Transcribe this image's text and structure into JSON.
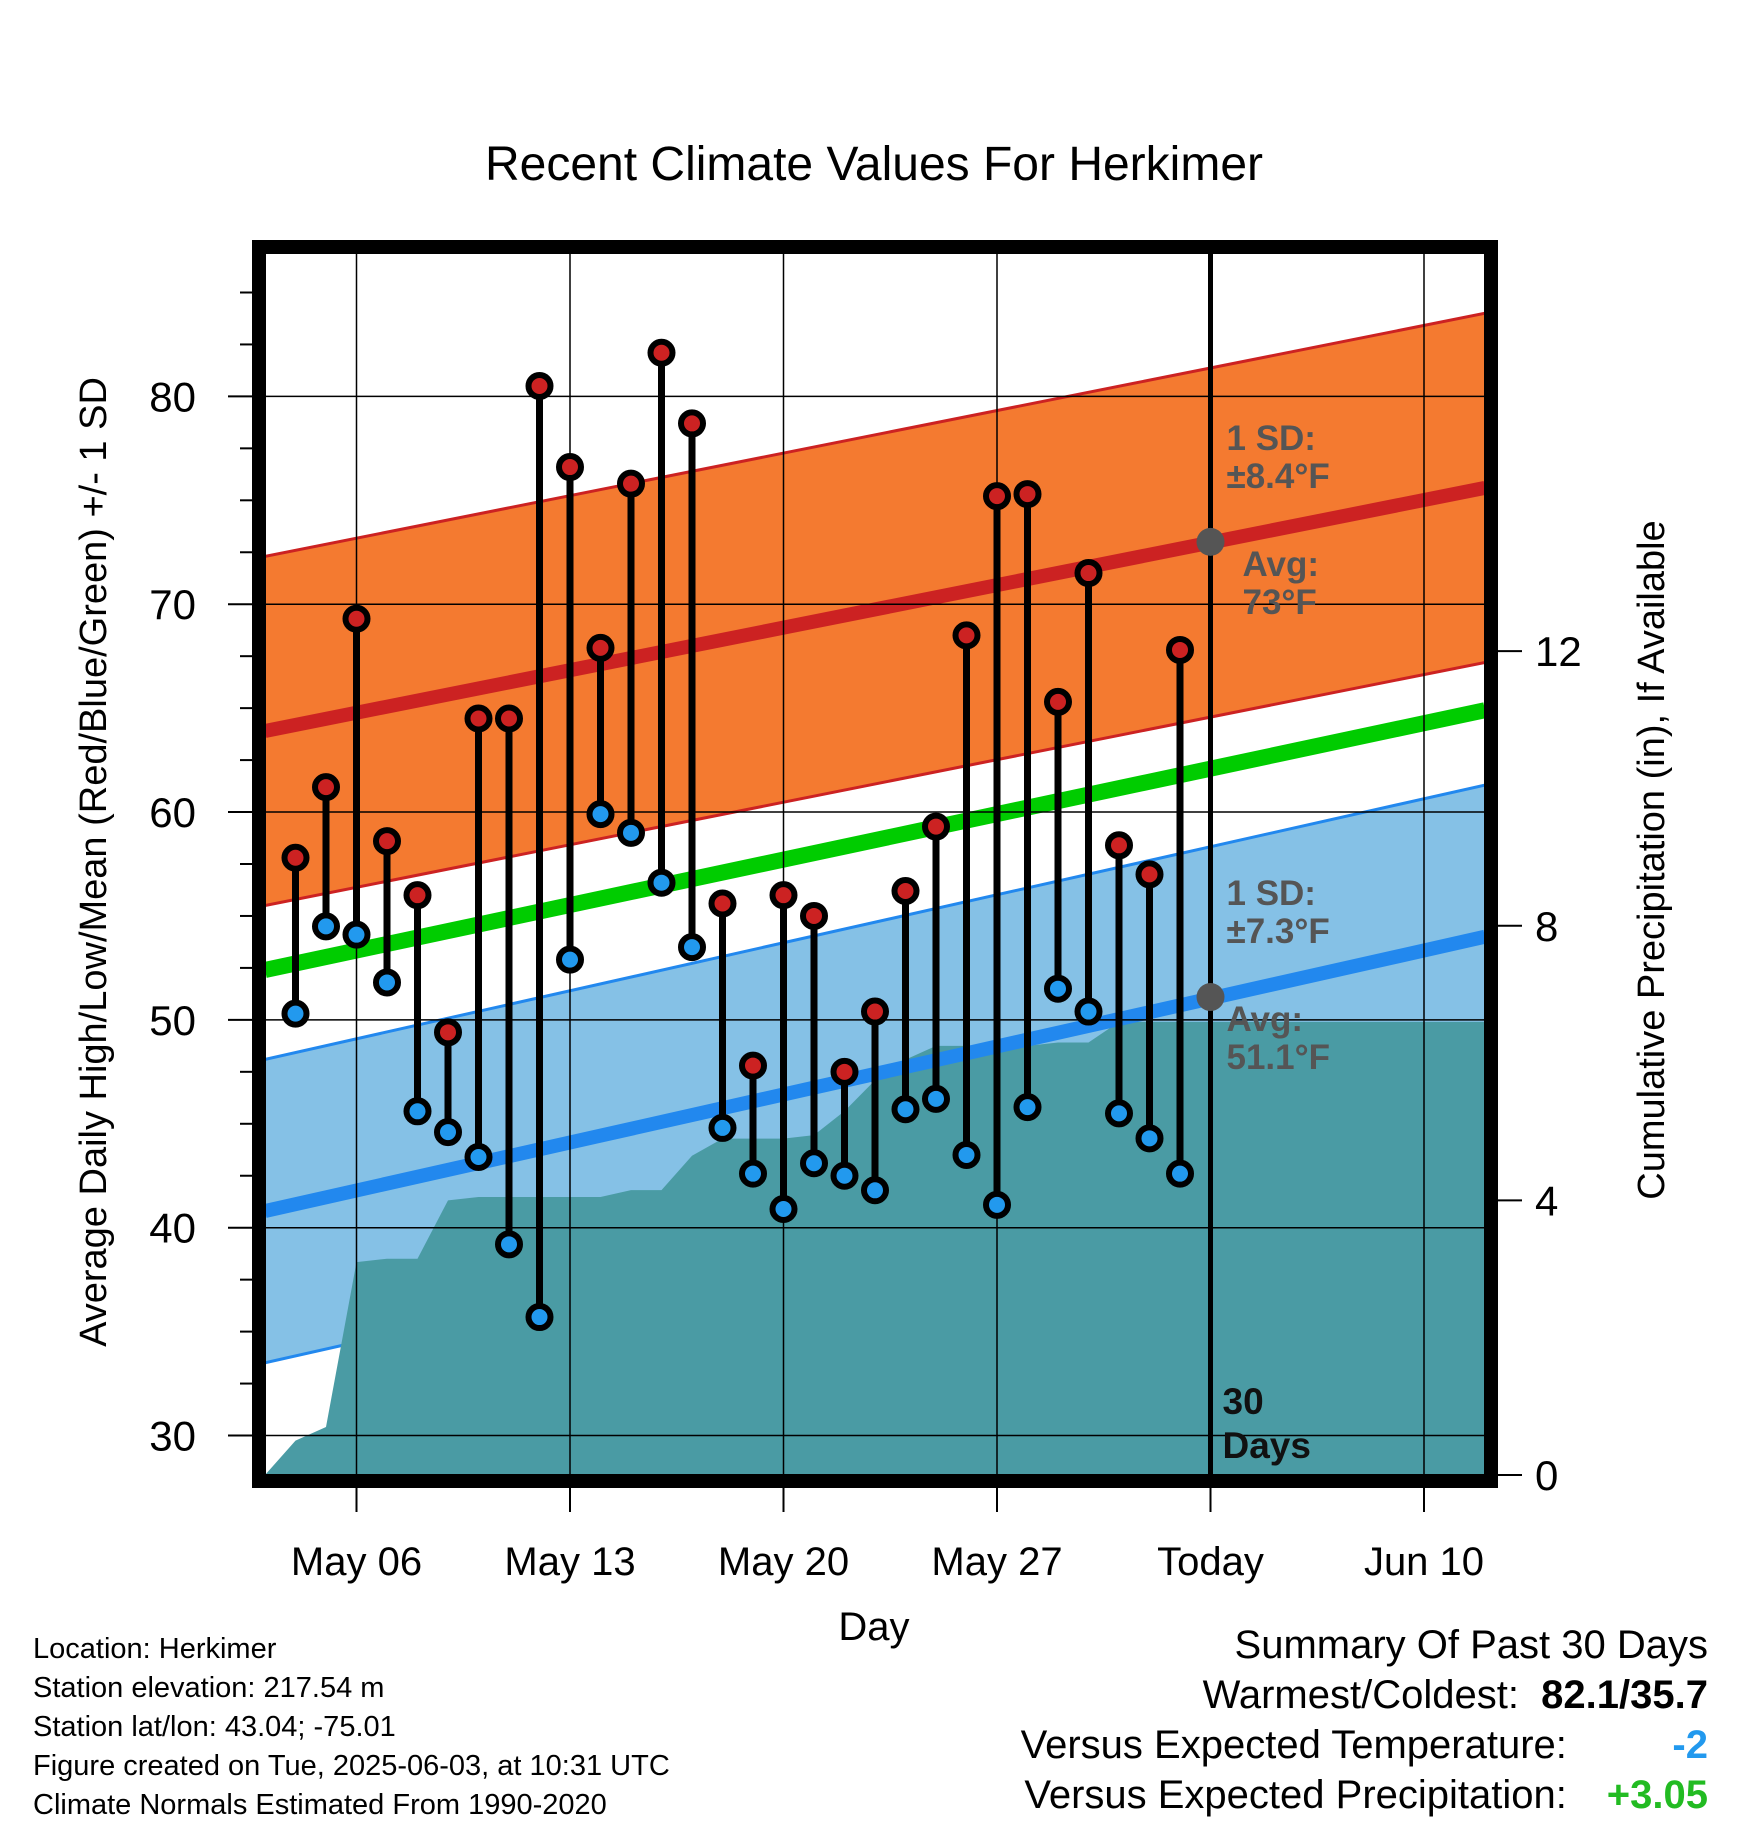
{
  "chart_data": {
    "type": "line",
    "title": "Recent Climate Values For Herkimer",
    "xlabel": "Day",
    "ylabel": "Average Daily High/Low/Mean (Red/Blue/Green) +/- 1 SD",
    "y2label": "Cumulative Precipitation (in), If Available",
    "ylim": [
      28.1,
      86.9
    ],
    "y2lim": [
      0,
      17.8
    ],
    "yticks": [
      "30",
      "40",
      "50",
      "60",
      "70",
      "80"
    ],
    "y2ticks": [
      "0",
      "4",
      "8",
      "12"
    ],
    "x_tick_labels": [
      "May 06",
      "May 13",
      "May 20",
      "May 27",
      "Today",
      "Jun 10"
    ],
    "x_tick_dates": [
      "2025-05-06",
      "2025-05-13",
      "2025-05-20",
      "2025-05-27",
      "2025-06-03",
      "2025-06-10"
    ],
    "x_range": [
      "2025-05-03",
      "2025-06-12"
    ],
    "today": "2025-06-03",
    "today_label": "Today",
    "grid": true,
    "period_label_line1": "30",
    "period_label_line2": "Days",
    "dates": [
      "2025-05-04",
      "2025-05-05",
      "2025-05-06",
      "2025-05-07",
      "2025-05-08",
      "2025-05-09",
      "2025-05-10",
      "2025-05-11",
      "2025-05-12",
      "2025-05-13",
      "2025-05-14",
      "2025-05-15",
      "2025-05-16",
      "2025-05-17",
      "2025-05-18",
      "2025-05-19",
      "2025-05-20",
      "2025-05-21",
      "2025-05-22",
      "2025-05-23",
      "2025-05-24",
      "2025-05-25",
      "2025-05-26",
      "2025-05-27",
      "2025-05-28",
      "2025-05-29",
      "2025-05-30",
      "2025-05-31",
      "2025-06-01",
      "2025-06-02"
    ],
    "series": [
      {
        "name": "Daily High",
        "color": "#cc2222",
        "values": [
          57.8,
          61.2,
          69.3,
          58.6,
          56.0,
          49.4,
          64.5,
          64.5,
          80.5,
          76.6,
          67.9,
          75.8,
          82.1,
          78.7,
          55.6,
          47.8,
          56.0,
          55.0,
          47.5,
          50.4,
          56.2,
          59.3,
          68.5,
          75.2,
          75.3,
          65.3,
          71.5,
          58.4,
          57.0,
          67.8
        ]
      },
      {
        "name": "Daily Low",
        "color": "#2299ee",
        "values": [
          50.3,
          54.5,
          54.1,
          51.8,
          45.6,
          44.6,
          43.4,
          39.2,
          35.7,
          52.9,
          59.9,
          59.0,
          56.6,
          53.5,
          44.8,
          42.6,
          40.9,
          43.1,
          42.5,
          41.8,
          45.7,
          46.2,
          43.5,
          41.1,
          45.8,
          51.5,
          50.4,
          45.5,
          44.3,
          42.6
        ]
      },
      {
        "name": "Normal High",
        "color": "#cc2222",
        "x": [
          "2025-05-03",
          "2025-06-12"
        ],
        "values": [
          63.9,
          75.6
        ],
        "sd": 8.4
      },
      {
        "name": "Normal Low",
        "color": "#2288ee",
        "x": [
          "2025-05-03",
          "2025-06-12"
        ],
        "values": [
          40.8,
          54.0
        ],
        "sd": 7.3
      },
      {
        "name": "Normal Mean",
        "color": "#00cc00",
        "x": [
          "2025-05-03",
          "2025-06-12"
        ],
        "values": [
          52.4,
          64.9
        ]
      },
      {
        "name": "Cumulative Precipitation",
        "color": "#4a9ba4",
        "axis": "right",
        "x": [
          "2025-05-03",
          "2025-05-04",
          "2025-05-05",
          "2025-05-06",
          "2025-05-07",
          "2025-05-08",
          "2025-05-09",
          "2025-05-10",
          "2025-05-11",
          "2025-05-12",
          "2025-05-13",
          "2025-05-14",
          "2025-05-15",
          "2025-05-16",
          "2025-05-17",
          "2025-05-18",
          "2025-05-19",
          "2025-05-20",
          "2025-05-21",
          "2025-05-22",
          "2025-05-23",
          "2025-05-24",
          "2025-05-25",
          "2025-05-26",
          "2025-05-27",
          "2025-05-28",
          "2025-05-29",
          "2025-05-30",
          "2025-05-31",
          "2025-06-01",
          "2025-06-02",
          "2025-06-12"
        ],
        "values": [
          0.0,
          0.5,
          0.7,
          3.1,
          3.15,
          3.15,
          4.0,
          4.05,
          4.05,
          4.05,
          4.05,
          4.05,
          4.15,
          4.15,
          4.65,
          4.9,
          4.9,
          4.9,
          4.95,
          5.3,
          5.75,
          6.05,
          6.25,
          6.25,
          6.25,
          6.25,
          6.3,
          6.3,
          6.6,
          6.6,
          6.6,
          6.6
        ]
      }
    ],
    "annotations": {
      "high_sd": {
        "line1": "1 SD:",
        "line2": "±8.4°F"
      },
      "high_avg": {
        "line1": "Avg:",
        "line2": "73°F",
        "value": 73
      },
      "low_sd": {
        "line1": "1 SD:",
        "line2": "±7.3°F"
      },
      "low_avg": {
        "line1": "Avg:",
        "line2": "51.1°F",
        "value": 51.1
      }
    },
    "colors": {
      "high_band": "#f47a30",
      "low_band": "#85c1e6",
      "precip": "#4a9ba4",
      "high_marker": "#cc2222",
      "low_marker": "#2299ee",
      "annotation_text": "#555555"
    }
  },
  "info": {
    "location": "Location: Herkimer",
    "elevation": "Station elevation: 217.54 m",
    "latlon": "Station lat/lon: 43.04; -75.01",
    "created": "Figure created on Tue, 2025-06-03, at 10:31 UTC",
    "normals": "Climate Normals Estimated From 1990-2020"
  },
  "summary": {
    "title": "Summary Of Past 30 Days",
    "warmest_label": "Warmest/Coldest:",
    "warmest_value": "82.1/35.7",
    "temp_label": "Versus Expected Temperature:",
    "temp_value": "-2",
    "temp_color": "#2299ee",
    "precip_label": "Versus Expected Precipitation:",
    "precip_value": "+3.05",
    "precip_color": "#22bb22"
  }
}
